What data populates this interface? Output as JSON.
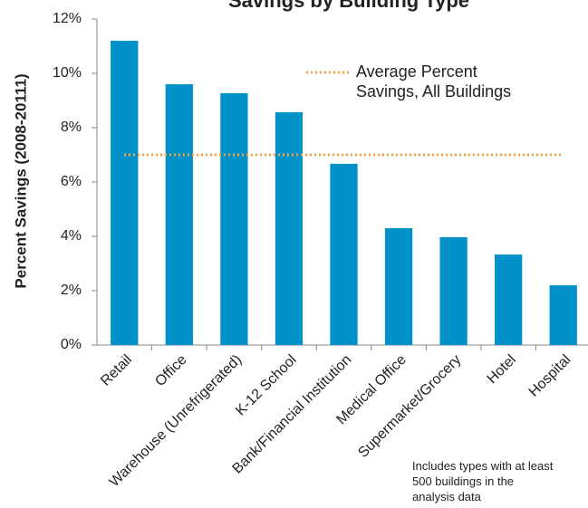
{
  "chart_data": {
    "type": "bar",
    "title": "Savings by Building Type",
    "y_label": "Percent Savings (2008-20111)",
    "categories": [
      "Retail",
      "Office",
      "Warehouse (Unrefrigerated)",
      "K-12 School",
      "Bank/Financial Institution",
      "Medical Office",
      "Supermarket/Grocery",
      "Hotel",
      "Hospital"
    ],
    "values": [
      11.2,
      9.6,
      9.27,
      8.57,
      6.67,
      4.3,
      3.97,
      3.33,
      2.2
    ],
    "color": "#0091c8",
    "reference_line": {
      "name": "Average Percent Savings, All Buildings",
      "value": 7.0,
      "color": "#f5a042"
    },
    "ylim": [
      0,
      12
    ],
    "yticks": [
      {
        "value": 0,
        "label": "0%"
      },
      {
        "value": 2,
        "label": "2%"
      },
      {
        "value": 4,
        "label": "4%"
      },
      {
        "value": 6,
        "label": "6%"
      },
      {
        "value": 8,
        "label": "8%"
      },
      {
        "value": 10,
        "label": "10%"
      },
      {
        "value": 12,
        "label": "12%"
      }
    ],
    "annotation": "Includes types with at least 500 buildings in the analysis data"
  }
}
